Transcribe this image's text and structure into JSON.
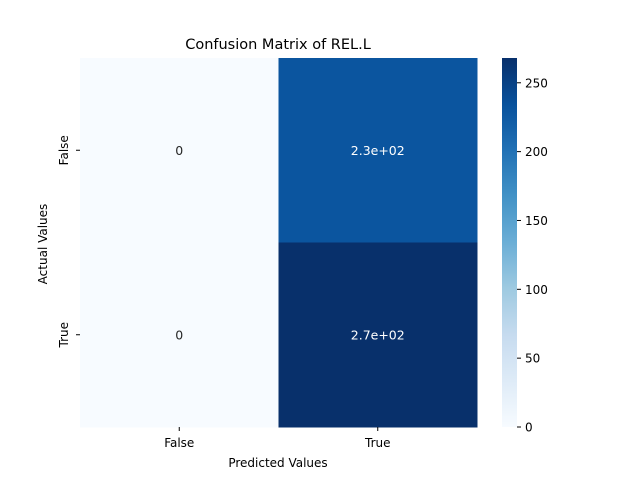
{
  "chart_data": {
    "type": "heatmap",
    "title": "Confusion Matrix of REL.L",
    "xlabel": "Predicted Values",
    "ylabel": "Actual Values",
    "x_categories": [
      "False",
      "True"
    ],
    "y_categories": [
      "False",
      "True"
    ],
    "values": [
      [
        0,
        230
      ],
      [
        0,
        270
      ]
    ],
    "annotations": [
      [
        "0",
        "2.3e+02"
      ],
      [
        "0",
        "2.7e+02"
      ]
    ],
    "colorbar": {
      "range": [
        0,
        268
      ],
      "ticks": [
        0,
        50,
        100,
        150,
        200,
        250
      ],
      "tick_labels": [
        "0",
        "50",
        "100",
        "150",
        "200",
        "250"
      ]
    },
    "colormap": "Blues",
    "colors": {
      "low": "#f7fbff",
      "high": "#08306b",
      "annotation_dark": "#262626",
      "annotation_light": "#ffffff"
    }
  }
}
